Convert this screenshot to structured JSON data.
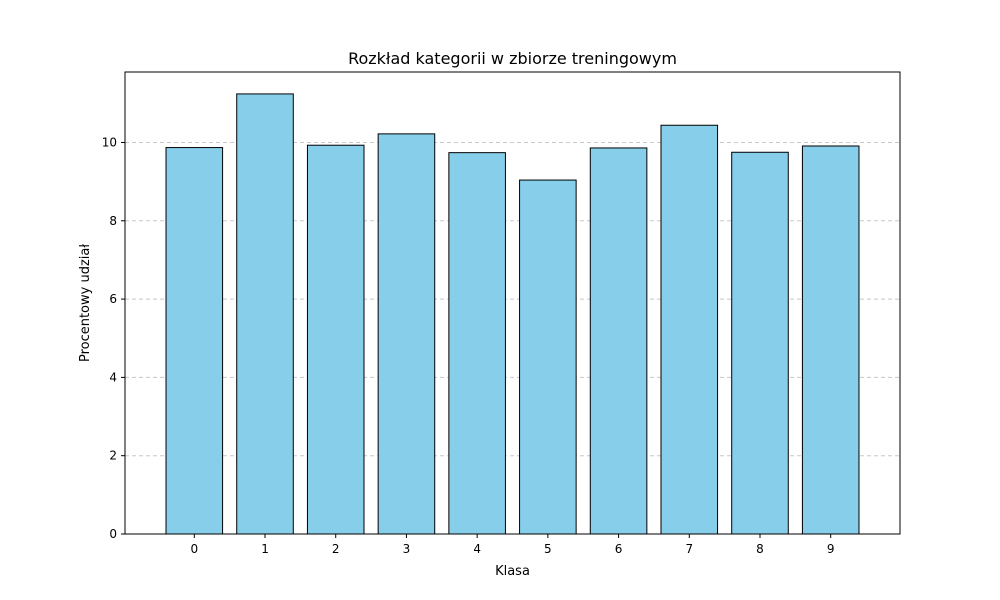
{
  "chart_data": {
    "type": "bar",
    "title": "Rozkład kategorii w zbiorze treningowym",
    "xlabel": "Klasa",
    "ylabel": "Procentowy udział",
    "categories": [
      "0",
      "1",
      "2",
      "3",
      "4",
      "5",
      "6",
      "7",
      "8",
      "9"
    ],
    "values": [
      9.87,
      11.24,
      9.93,
      10.22,
      9.74,
      9.04,
      9.86,
      10.44,
      9.75,
      9.91
    ],
    "ylim": [
      0,
      11.8
    ],
    "yticks": [
      0,
      2,
      4,
      6,
      8,
      10
    ],
    "grid": "y-dashed",
    "bar_color": "#87ceeb",
    "bar_edge_color": "#000000",
    "grid_color": "#c8c8c8"
  }
}
